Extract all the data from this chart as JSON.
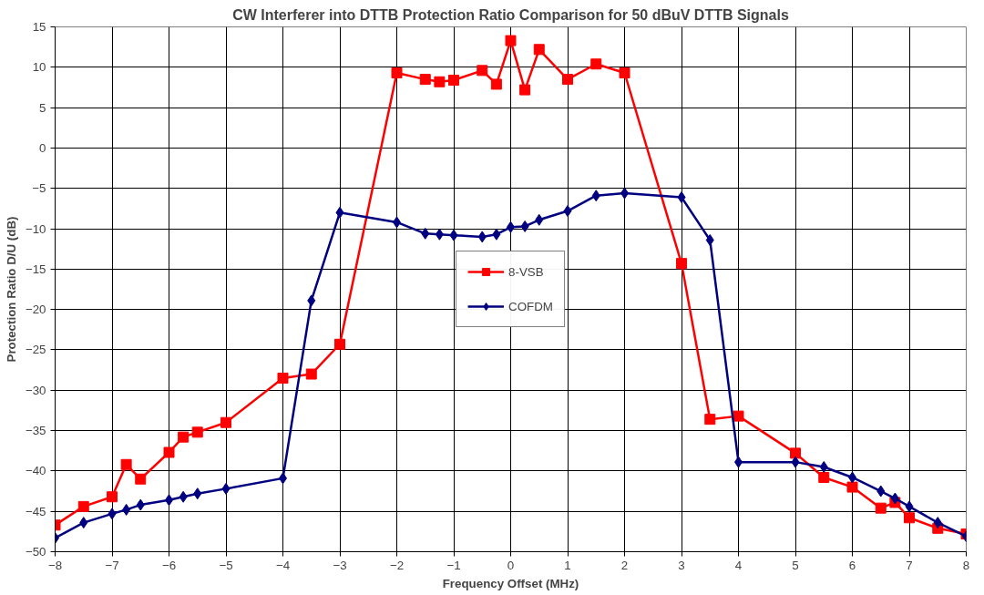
{
  "chart_data": {
    "type": "line",
    "title": "CW Interferer into DTTB Protection Ratio Comparison for 50 dBuV DTTB Signals",
    "xlabel": "Frequency Offset (MHz)",
    "ylabel": "Protection Ratio D/U (dB)",
    "xlim": [
      -8,
      8
    ],
    "xticks": [
      -8,
      -7,
      -6,
      -5,
      -4,
      -3,
      -2,
      -1,
      0,
      1,
      2,
      3,
      4,
      5,
      6,
      7,
      8
    ],
    "ylim": [
      -50,
      15
    ],
    "yticks": [
      -50,
      -45,
      -40,
      -35,
      -30,
      -25,
      -20,
      -15,
      -10,
      -5,
      0,
      5,
      10,
      15
    ],
    "grid": true,
    "legend": "center",
    "line_style": "solid",
    "series": [
      {
        "name": "8-VSB",
        "color": "#ff0000",
        "marker": "square",
        "x": [
          -8,
          -7.5,
          -7,
          -6.75,
          -6.5,
          -6,
          -5.75,
          -5.5,
          -5,
          -4,
          -3.5,
          -3,
          -2,
          -1.5,
          -1.25,
          -1,
          -0.5,
          -0.25,
          0,
          0.25,
          0.5,
          1,
          1.5,
          2,
          3,
          3.5,
          4,
          5,
          5.5,
          6,
          6.5,
          6.75,
          7,
          7.5,
          8
        ],
        "values": [
          -46.7,
          -44.4,
          -43.2,
          -39.2,
          -41.0,
          -37.7,
          -35.8,
          -35.2,
          -34.0,
          -28.5,
          -28.0,
          -24.3,
          9.3,
          8.5,
          8.2,
          8.4,
          9.6,
          7.9,
          13.3,
          7.2,
          12.2,
          8.5,
          10.4,
          9.3,
          -14.3,
          -33.6,
          -33.2,
          -37.8,
          -40.8,
          -42.0,
          -44.6,
          -43.9,
          -45.8,
          -47.1,
          -47.8
        ]
      },
      {
        "name": "COFDM",
        "color": "#000080",
        "marker": "diamond",
        "x": [
          -8,
          -7.5,
          -7,
          -6.75,
          -6.5,
          -6,
          -5.75,
          -5.5,
          -5,
          -4,
          -3.5,
          -3,
          -2,
          -1.5,
          -1.25,
          -1,
          -0.5,
          -0.25,
          0,
          0.25,
          0.5,
          1,
          1.5,
          2,
          3,
          3.5,
          4,
          5,
          5.5,
          6,
          6.5,
          6.75,
          7,
          7.5,
          8
        ],
        "values": [
          -48.3,
          -46.4,
          -45.3,
          -44.8,
          -44.2,
          -43.6,
          -43.2,
          -42.8,
          -42.2,
          -40.9,
          -18.9,
          -8.0,
          -9.2,
          -10.6,
          -10.7,
          -10.8,
          -11.0,
          -10.7,
          -9.8,
          -9.7,
          -8.9,
          -7.8,
          -5.9,
          -5.6,
          -6.1,
          -11.4,
          -38.9,
          -38.9,
          -39.5,
          -40.8,
          -42.5,
          -43.4,
          -44.4,
          -46.4,
          -48.1
        ]
      }
    ]
  }
}
